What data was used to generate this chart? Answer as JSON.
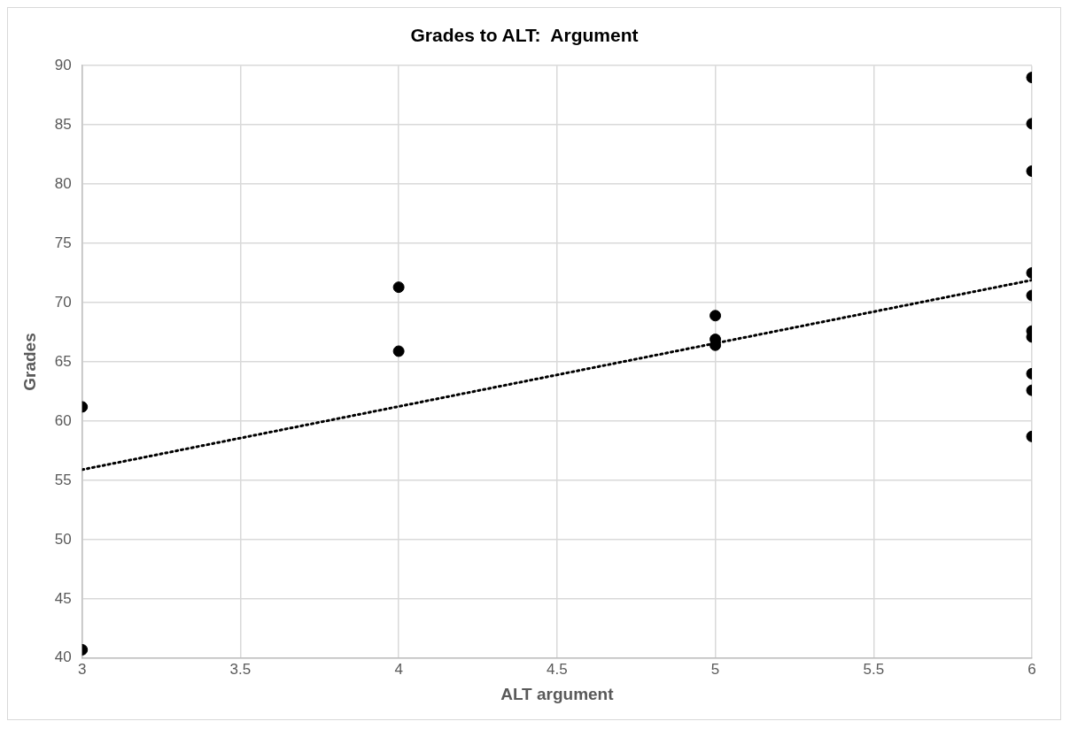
{
  "chart_data": {
    "type": "scatter",
    "title": "Grades to ALT:  Argument",
    "xlabel": "ALT argument",
    "ylabel": "Grades",
    "xlim": [
      3,
      6
    ],
    "xticks": [
      3,
      3.5,
      4,
      4.5,
      5,
      5.5,
      6
    ],
    "ylim": [
      40,
      90
    ],
    "yticks": [
      40,
      45,
      50,
      55,
      60,
      65,
      70,
      75,
      80,
      85,
      90
    ],
    "grid": true,
    "legend": false,
    "marker": "circle",
    "series": [
      {
        "color": "#000000",
        "x": [
          3,
          3,
          4,
          4,
          5,
          5,
          5,
          6,
          6,
          6,
          6,
          6,
          6,
          6,
          6,
          6,
          6
        ],
        "values": [
          61.2,
          40.7,
          71.3,
          65.9,
          68.9,
          66.9,
          66.4,
          89,
          85.1,
          81.1,
          72.5,
          70.6,
          67.6,
          67.1,
          64,
          62.6,
          58.7
        ]
      },
      {
        "type": "line",
        "color": "#000000",
        "line_style": "dotted",
        "marker": "none",
        "x": [
          3,
          6
        ],
        "values": [
          55.9,
          71.9
        ]
      }
    ]
  }
}
